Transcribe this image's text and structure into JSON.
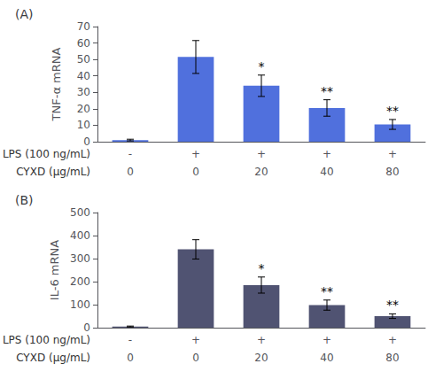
{
  "chart_data": [
    {
      "type": "bar",
      "title": "(A)",
      "ylabel": "TNF-α mRNA",
      "values": [
        1.0,
        51.5,
        34.0,
        20.5,
        10.5
      ],
      "errors": [
        0.5,
        10.0,
        6.5,
        5.0,
        3.0
      ],
      "significance": [
        null,
        null,
        "*",
        "**",
        "**"
      ],
      "x_rows": [
        {
          "label": "LPS (100 ng/mL)",
          "values": [
            "-",
            "+",
            "+",
            "+",
            "+"
          ]
        },
        {
          "label": "CYXD (μg/mL)",
          "values": [
            "0",
            "0",
            "20",
            "40",
            "80"
          ]
        }
      ],
      "ylim": [
        0,
        70
      ],
      "yticks": [
        0,
        10,
        20,
        30,
        40,
        50,
        60,
        70
      ],
      "grid": false
    },
    {
      "type": "bar",
      "title": "(B)",
      "ylabel": "IL-6 mRNA",
      "values": [
        5.0,
        340.0,
        185.0,
        98.0,
        50.0
      ],
      "errors": [
        2.0,
        42.0,
        35.0,
        22.0,
        10.0
      ],
      "significance": [
        null,
        null,
        "*",
        "**",
        "**"
      ],
      "x_rows": [
        {
          "label": "LPS (100 ng/mL)",
          "values": [
            "-",
            "+",
            "+",
            "+",
            "+"
          ]
        },
        {
          "label": "CYXD (μg/mL)",
          "values": [
            "0",
            "0",
            "20",
            "40",
            "80"
          ]
        }
      ],
      "ylim": [
        0,
        500
      ],
      "yticks": [
        0,
        100,
        200,
        300,
        400,
        500
      ],
      "grid": false
    }
  ]
}
